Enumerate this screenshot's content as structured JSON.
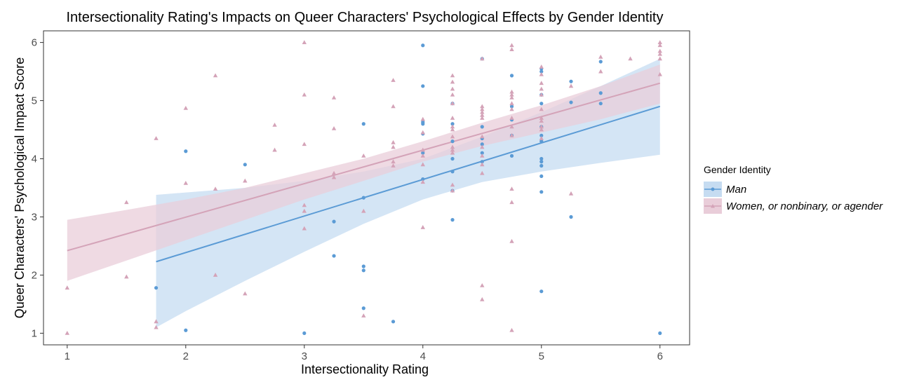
{
  "chart_data": {
    "type": "scatter",
    "title": "Intersectionality Rating's Impacts on Queer Characters' Psychological Effects by Gender Identity",
    "xlabel": "Intersectionality Rating",
    "ylabel": "Queer Characters' Psychological Impact Score",
    "xlim": [
      0.8,
      6.25
    ],
    "ylim": [
      0.8,
      6.2
    ],
    "xticks": [
      1,
      2,
      3,
      4,
      5,
      6
    ],
    "yticks": [
      1,
      2,
      3,
      4,
      5,
      6
    ],
    "grid": false,
    "legend_title": "Gender Identity",
    "legend_position": "right",
    "series": [
      {
        "name": "Man",
        "color": "#5b9bd5",
        "band_color": "#c6dcf1",
        "marker": "circle",
        "points": [
          [
            1.75,
            1.78
          ],
          [
            2,
            4.13
          ],
          [
            2,
            1.05
          ],
          [
            2.5,
            3.9
          ],
          [
            3,
            1.0
          ],
          [
            3.25,
            2.92
          ],
          [
            3.25,
            2.33
          ],
          [
            3.5,
            4.6
          ],
          [
            3.5,
            3.33
          ],
          [
            3.5,
            2.15
          ],
          [
            3.5,
            2.08
          ],
          [
            3.5,
            1.43
          ],
          [
            3.75,
            1.2
          ],
          [
            4,
            5.95
          ],
          [
            4,
            5.25
          ],
          [
            4,
            4.63
          ],
          [
            4,
            4.6
          ],
          [
            4,
            4.43
          ],
          [
            4,
            4.1
          ],
          [
            4,
            3.65
          ],
          [
            4.25,
            4.95
          ],
          [
            4.25,
            4.6
          ],
          [
            4.25,
            4.3
          ],
          [
            4.25,
            4.0
          ],
          [
            4.25,
            3.78
          ],
          [
            4.25,
            3.45
          ],
          [
            4.25,
            2.95
          ],
          [
            4.5,
            5.72
          ],
          [
            4.5,
            4.55
          ],
          [
            4.5,
            4.35
          ],
          [
            4.5,
            4.25
          ],
          [
            4.5,
            4.1
          ],
          [
            4.5,
            3.95
          ],
          [
            4.75,
            5.43
          ],
          [
            4.75,
            4.9
          ],
          [
            4.75,
            4.67
          ],
          [
            4.75,
            4.4
          ],
          [
            4.75,
            4.05
          ],
          [
            5,
            5.55
          ],
          [
            5,
            5.5
          ],
          [
            5,
            5.1
          ],
          [
            5,
            4.95
          ],
          [
            5,
            4.55
          ],
          [
            5,
            4.4
          ],
          [
            5,
            4.3
          ],
          [
            5,
            4.0
          ],
          [
            5,
            3.95
          ],
          [
            5,
            3.88
          ],
          [
            5,
            3.7
          ],
          [
            5,
            3.43
          ],
          [
            5,
            1.72
          ],
          [
            5.25,
            5.33
          ],
          [
            5.25,
            4.97
          ],
          [
            5.25,
            3.0
          ],
          [
            5.5,
            5.67
          ],
          [
            5.5,
            5.13
          ],
          [
            5.5,
            4.95
          ],
          [
            6,
            1.0
          ]
        ],
        "fit": {
          "x_start": 1.75,
          "x_end": 6.0,
          "y_start": 2.23,
          "y_end": 4.9
        },
        "band": {
          "upper": [
            [
              1.75,
              3.38
            ],
            [
              2.0,
              3.42
            ],
            [
              2.5,
              3.5
            ],
            [
              3.0,
              3.62
            ],
            [
              3.5,
              3.78
            ],
            [
              4.0,
              4.0
            ],
            [
              4.5,
              4.38
            ],
            [
              5.0,
              4.8
            ],
            [
              5.5,
              5.25
            ],
            [
              6.0,
              5.72
            ]
          ],
          "lower": [
            [
              1.75,
              1.1
            ],
            [
              2.0,
              1.38
            ],
            [
              2.5,
              1.9
            ],
            [
              3.0,
              2.4
            ],
            [
              3.5,
              2.88
            ],
            [
              4.0,
              3.3
            ],
            [
              4.5,
              3.6
            ],
            [
              5.0,
              3.78
            ],
            [
              5.5,
              3.93
            ],
            [
              6.0,
              4.07
            ]
          ]
        }
      },
      {
        "name": "Women, or nonbinary, or agender",
        "color": "#d4a3b8",
        "band_color": "#e9cdd9",
        "marker": "triangle",
        "points": [
          [
            1,
            1.78
          ],
          [
            1,
            1.0
          ],
          [
            1.5,
            3.25
          ],
          [
            1.5,
            1.97
          ],
          [
            1.75,
            4.35
          ],
          [
            1.75,
            1.2
          ],
          [
            1.75,
            1.1
          ],
          [
            2,
            4.87
          ],
          [
            2,
            3.58
          ],
          [
            2.25,
            5.43
          ],
          [
            2.25,
            3.48
          ],
          [
            2.25,
            2.0
          ],
          [
            2.5,
            3.62
          ],
          [
            2.5,
            1.68
          ],
          [
            2.75,
            4.58
          ],
          [
            2.75,
            4.15
          ],
          [
            3,
            6.0
          ],
          [
            3,
            5.1
          ],
          [
            3,
            4.25
          ],
          [
            3,
            3.2
          ],
          [
            3,
            3.1
          ],
          [
            3,
            2.8
          ],
          [
            3.25,
            5.05
          ],
          [
            3.25,
            4.52
          ],
          [
            3.25,
            3.75
          ],
          [
            3.25,
            3.68
          ],
          [
            3.5,
            4.05
          ],
          [
            3.5,
            3.1
          ],
          [
            3.5,
            1.3
          ],
          [
            3.75,
            5.35
          ],
          [
            3.75,
            4.9
          ],
          [
            3.75,
            4.28
          ],
          [
            3.75,
            4.2
          ],
          [
            3.75,
            3.95
          ],
          [
            3.75,
            3.88
          ],
          [
            4,
            4.68
          ],
          [
            4,
            4.45
          ],
          [
            4,
            4.15
          ],
          [
            4,
            4.05
          ],
          [
            4,
            3.9
          ],
          [
            4,
            3.6
          ],
          [
            4,
            2.82
          ],
          [
            4.25,
            5.43
          ],
          [
            4.25,
            5.32
          ],
          [
            4.25,
            5.2
          ],
          [
            4.25,
            5.1
          ],
          [
            4.25,
            4.95
          ],
          [
            4.25,
            4.7
          ],
          [
            4.25,
            4.55
          ],
          [
            4.25,
            4.5
          ],
          [
            4.25,
            4.38
          ],
          [
            4.25,
            4.2
          ],
          [
            4.25,
            4.15
          ],
          [
            4.25,
            4.1
          ],
          [
            4.25,
            3.55
          ],
          [
            4.25,
            3.45
          ],
          [
            4.5,
            5.72
          ],
          [
            4.5,
            4.9
          ],
          [
            4.5,
            4.85
          ],
          [
            4.5,
            4.8
          ],
          [
            4.5,
            4.75
          ],
          [
            4.5,
            4.7
          ],
          [
            4.5,
            4.38
          ],
          [
            4.5,
            4.2
          ],
          [
            4.5,
            4.05
          ],
          [
            4.5,
            3.9
          ],
          [
            4.5,
            3.75
          ],
          [
            4.5,
            1.82
          ],
          [
            4.5,
            1.58
          ],
          [
            4.75,
            5.95
          ],
          [
            4.75,
            5.88
          ],
          [
            4.75,
            5.15
          ],
          [
            4.75,
            5.1
          ],
          [
            4.75,
            5.05
          ],
          [
            4.75,
            4.95
          ],
          [
            4.75,
            4.85
          ],
          [
            4.75,
            4.7
          ],
          [
            4.75,
            4.55
          ],
          [
            4.75,
            4.4
          ],
          [
            4.75,
            3.48
          ],
          [
            4.75,
            3.25
          ],
          [
            4.75,
            2.58
          ],
          [
            4.75,
            1.05
          ],
          [
            5,
            5.58
          ],
          [
            5,
            5.45
          ],
          [
            5,
            5.3
          ],
          [
            5,
            5.2
          ],
          [
            5,
            5.1
          ],
          [
            5,
            4.85
          ],
          [
            5,
            4.7
          ],
          [
            5,
            4.65
          ],
          [
            5,
            4.55
          ],
          [
            5,
            4.5
          ],
          [
            5,
            4.35
          ],
          [
            5.25,
            5.25
          ],
          [
            5.25,
            3.4
          ],
          [
            5.5,
            5.75
          ],
          [
            5.5,
            5.5
          ],
          [
            5.75,
            5.72
          ],
          [
            6,
            6.0
          ],
          [
            6,
            5.95
          ],
          [
            6,
            5.85
          ],
          [
            6,
            5.8
          ],
          [
            6,
            5.72
          ],
          [
            6,
            5.45
          ]
        ],
        "fit": {
          "x_start": 1.0,
          "x_end": 6.0,
          "y_start": 2.42,
          "y_end": 5.3
        },
        "band": {
          "upper": [
            [
              1.0,
              2.95
            ],
            [
              1.5,
              3.12
            ],
            [
              2.0,
              3.3
            ],
            [
              2.5,
              3.5
            ],
            [
              3.0,
              3.75
            ],
            [
              3.5,
              4.0
            ],
            [
              4.0,
              4.3
            ],
            [
              4.5,
              4.62
            ],
            [
              5.0,
              4.92
            ],
            [
              5.5,
              5.25
            ],
            [
              6.0,
              5.62
            ]
          ],
          "lower": [
            [
              1.0,
              1.9
            ],
            [
              1.5,
              2.25
            ],
            [
              2.0,
              2.6
            ],
            [
              2.5,
              2.95
            ],
            [
              3.0,
              3.3
            ],
            [
              3.5,
              3.62
            ],
            [
              4.0,
              3.95
            ],
            [
              4.5,
              4.22
            ],
            [
              5.0,
              4.45
            ],
            [
              5.5,
              4.68
            ],
            [
              6.0,
              4.95
            ]
          ]
        }
      }
    ]
  }
}
